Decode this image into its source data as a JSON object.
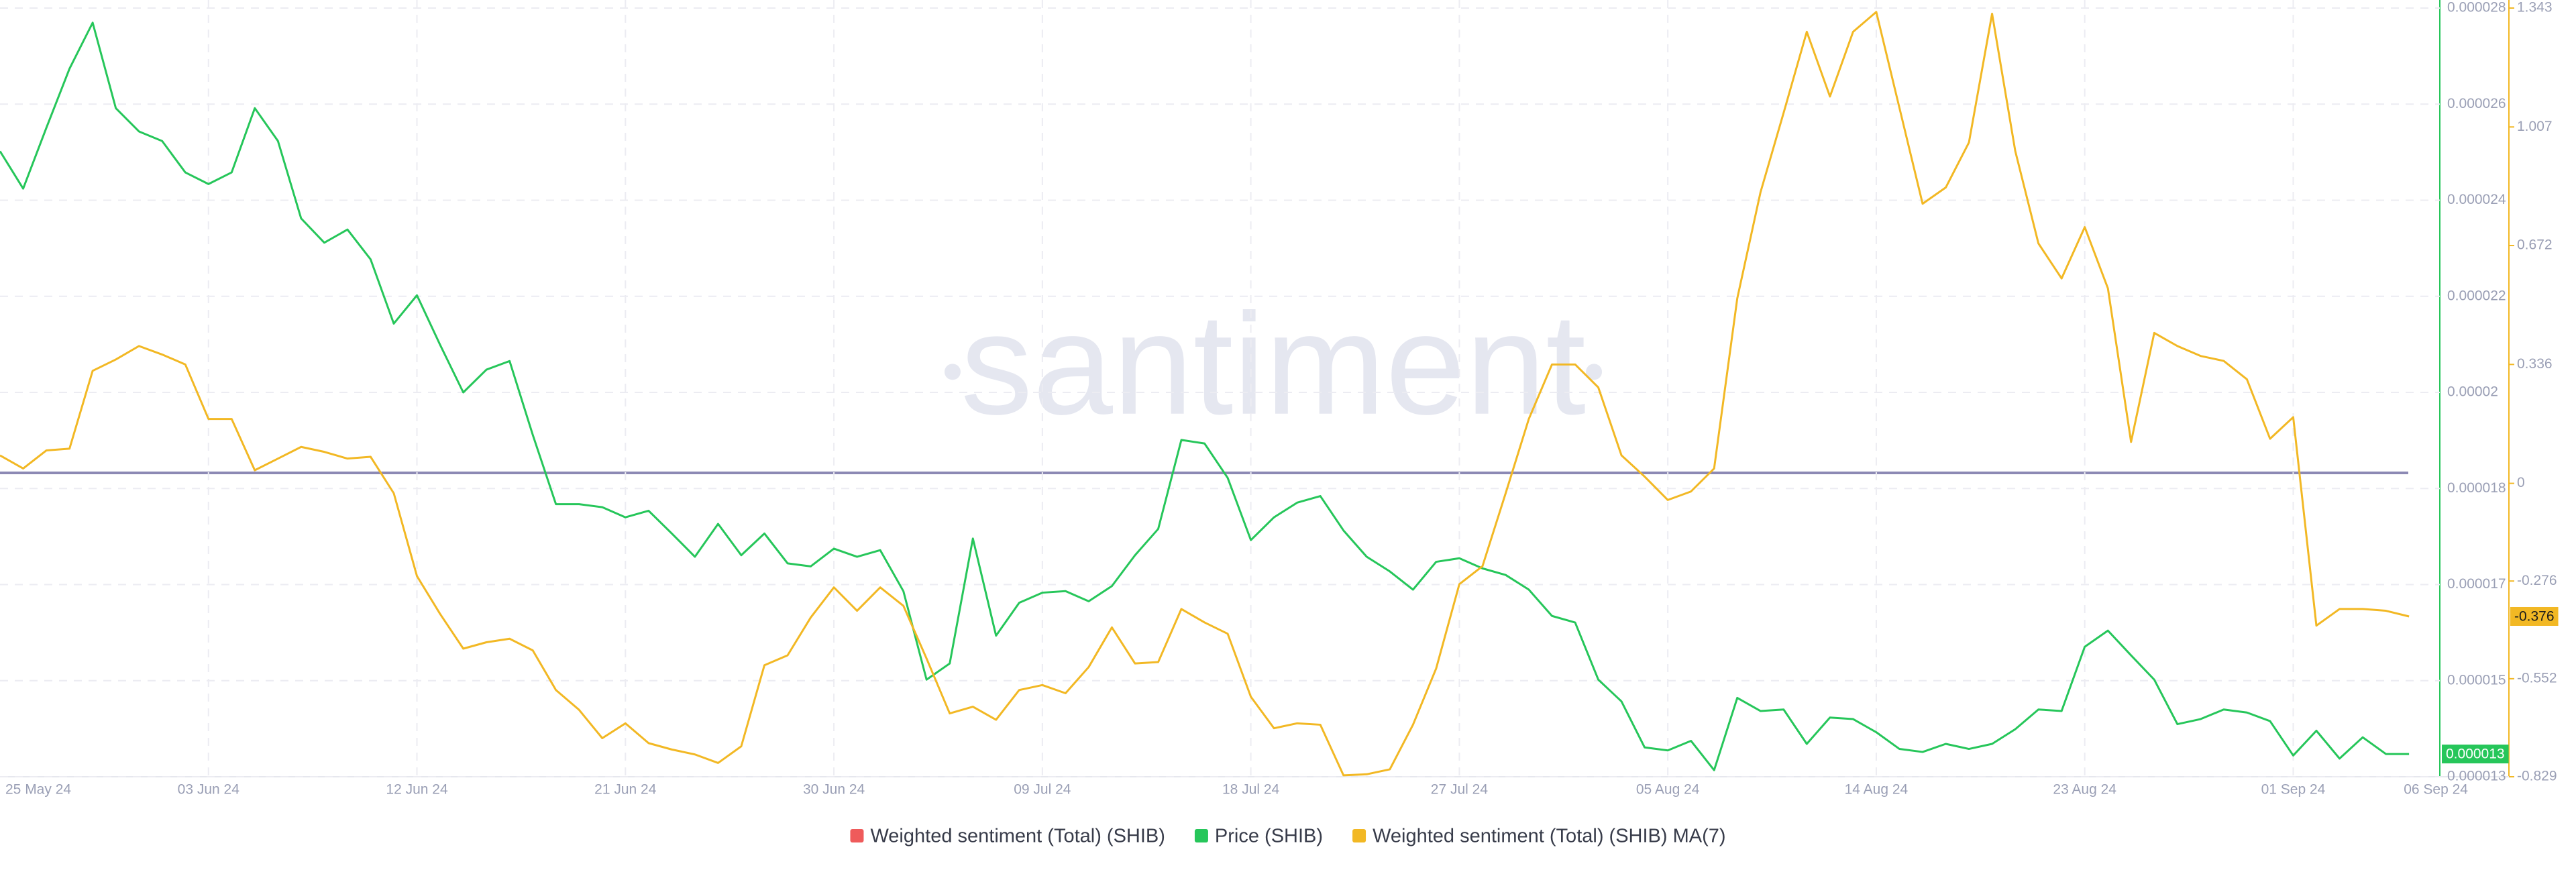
{
  "chart_data": {
    "type": "line",
    "watermark": "santiment",
    "categories": [
      "25 May 24",
      null,
      null,
      null,
      null,
      null,
      null,
      null,
      null,
      "03 Jun 24",
      null,
      null,
      null,
      null,
      null,
      null,
      null,
      null,
      "12 Jun 24",
      null,
      null,
      null,
      null,
      null,
      null,
      null,
      null,
      "21 Jun 24",
      null,
      null,
      null,
      null,
      null,
      null,
      null,
      null,
      "30 Jun 24",
      null,
      null,
      null,
      null,
      null,
      null,
      null,
      null,
      "09 Jul 24",
      null,
      null,
      null,
      null,
      null,
      null,
      null,
      null,
      "18 Jul 24",
      null,
      null,
      null,
      null,
      null,
      null,
      null,
      null,
      "27 Jul 24",
      null,
      null,
      null,
      null,
      null,
      null,
      null,
      null,
      "05 Aug 24",
      null,
      null,
      null,
      null,
      null,
      null,
      null,
      null,
      "14 Aug 24",
      null,
      null,
      null,
      null,
      null,
      null,
      null,
      null,
      "23 Aug 24",
      null,
      null,
      null,
      null,
      null,
      null,
      null,
      null,
      "01 Sep 24",
      null,
      null,
      null,
      null,
      "06 Sep 24"
    ],
    "ylim": [
      1.28e-05,
      2.8e-05
    ],
    "yticks": [
      {
        "value": 1.28e-05,
        "label": "0.000013"
      },
      {
        "value": 1.47e-05,
        "label": "0.000015"
      },
      {
        "value": 1.66e-05,
        "label": "0.000017"
      },
      {
        "value": 1.85e-05,
        "label": "0.000018"
      },
      {
        "value": 2.04e-05,
        "label": "0.00002"
      },
      {
        "value": 2.23e-05,
        "label": "0.000022"
      },
      {
        "value": 2.42e-05,
        "label": "0.000024"
      },
      {
        "value": 2.61e-05,
        "label": "0.000026"
      },
      {
        "value": 2.8e-05,
        "label": "0.000028"
      }
    ],
    "y2lim": [
      -0.829,
      1.343
    ],
    "y2ticks": [
      1.343,
      1.007,
      0.672,
      0.336,
      0,
      -0.276,
      -0.552,
      -0.829
    ],
    "grid": true,
    "series": [
      {
        "name": "Weighted sentiment (Total) (SHIB)",
        "color": "#ef5b5b"
      },
      {
        "name": "Price (SHIB)",
        "color": "#26c65a",
        "axis": "y",
        "last_label": "0.000013",
        "values": [
          2.517e-05,
          2.443e-05,
          2.563e-05,
          2.68e-05,
          2.771e-05,
          2.602e-05,
          2.556e-05,
          2.537e-05,
          2.475e-05,
          2.452e-05,
          2.475e-05,
          2.602e-05,
          2.537e-05,
          2.384e-05,
          2.336e-05,
          2.362e-05,
          2.303e-05,
          2.176e-05,
          2.232e-05,
          2.134e-05,
          2.04e-05,
          2.085e-05,
          2.102e-05,
          1.956e-05,
          1.819e-05,
          1.819e-05,
          1.813e-05,
          1.793e-05,
          1.806e-05,
          1.761e-05,
          1.715e-05,
          1.78e-05,
          1.718e-05,
          1.761e-05,
          1.702e-05,
          1.696e-05,
          1.731e-05,
          1.715e-05,
          1.728e-05,
          1.647e-05,
          1.472e-05,
          1.504e-05,
          1.751e-05,
          1.559e-05,
          1.624e-05,
          1.644e-05,
          1.647e-05,
          1.627e-05,
          1.657e-05,
          1.718e-05,
          1.77e-05,
          1.946e-05,
          1.939e-05,
          1.871e-05,
          1.748e-05,
          1.793e-05,
          1.822e-05,
          1.835e-05,
          1.767e-05,
          1.715e-05,
          1.686e-05,
          1.65e-05,
          1.705e-05,
          1.712e-05,
          1.692e-05,
          1.679e-05,
          1.65e-05,
          1.598e-05,
          1.585e-05,
          1.472e-05,
          1.429e-05,
          1.338e-05,
          1.332e-05,
          1.351e-05,
          1.293e-05,
          1.436e-05,
          1.41e-05,
          1.413e-05,
          1.345e-05,
          1.397e-05,
          1.394e-05,
          1.368e-05,
          1.335e-05,
          1.329e-05,
          1.345e-05,
          1.335e-05,
          1.345e-05,
          1.374e-05,
          1.413e-05,
          1.41e-05,
          1.537e-05,
          1.569e-05,
          1.52e-05,
          1.472e-05,
          1.384e-05,
          1.394e-05,
          1.413e-05,
          1.407e-05,
          1.39e-05,
          1.322e-05,
          1.371e-05,
          1.316e-05,
          1.358e-05,
          1.325e-05,
          1.325e-05
        ]
      },
      {
        "name": "Weighted sentiment (Total) (SHIB) MA(7)",
        "color": "#f2b824",
        "axis": "y2",
        "last_label": "-0.376",
        "values": [
          0.079,
          0.042,
          0.093,
          0.098,
          0.318,
          0.35,
          0.388,
          0.364,
          0.336,
          0.182,
          0.182,
          0.037,
          0.07,
          0.103,
          0.089,
          0.07,
          0.075,
          -0.028,
          -0.262,
          -0.369,
          -0.467,
          -0.449,
          -0.439,
          -0.472,
          -0.584,
          -0.64,
          -0.72,
          -0.678,
          -0.734,
          -0.752,
          -0.766,
          -0.79,
          -0.743,
          -0.514,
          -0.486,
          -0.379,
          -0.294,
          -0.36,
          -0.294,
          -0.346,
          -0.495,
          -0.65,
          -0.631,
          -0.668,
          -0.584,
          -0.57,
          -0.593,
          -0.519,
          -0.407,
          -0.509,
          -0.505,
          -0.355,
          -0.393,
          -0.425,
          -0.603,
          -0.692,
          -0.678,
          -0.682,
          -0.825,
          -0.822,
          -0.808,
          -0.682,
          -0.523,
          -0.285,
          -0.234,
          -0.028,
          0.182,
          0.336,
          0.336,
          0.271,
          0.079,
          0.019,
          -0.047,
          -0.023,
          0.042,
          0.523,
          0.822,
          1.047,
          1.276,
          1.093,
          1.276,
          1.332,
          1.061,
          0.79,
          0.836,
          0.963,
          1.327,
          0.939,
          0.678,
          0.579,
          0.724,
          0.551,
          0.117,
          0.425,
          0.388,
          0.36,
          0.346,
          0.294,
          0.126,
          0.187,
          -0.402,
          -0.355,
          -0.355,
          -0.36,
          -0.376
        ]
      }
    ]
  }
}
